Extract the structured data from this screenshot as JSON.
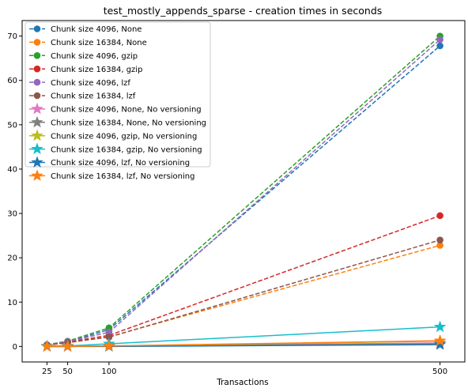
{
  "chart_data": {
    "type": "line",
    "title": "test_mostly_appends_sparse - creation times in seconds",
    "xlabel": "Transactions",
    "ylabel": "",
    "x": [
      25,
      50,
      100,
      500
    ],
    "xticks": [
      25,
      50,
      100,
      500
    ],
    "yticks": [
      0,
      10,
      20,
      30,
      40,
      50,
      60,
      70
    ],
    "xlim": [
      -5,
      530
    ],
    "ylim": [
      -3.5,
      73.5
    ],
    "grid": false,
    "legend_position": "top-left",
    "series": [
      {
        "name": "Chunk size 4096, None",
        "color": "#1f77b4",
        "dash": true,
        "marker": "circle",
        "values": [
          0.3,
          1.0,
          3.8,
          67.8
        ]
      },
      {
        "name": "Chunk size 16384, None",
        "color": "#ff7f0e",
        "dash": true,
        "marker": "circle",
        "values": [
          0.3,
          0.8,
          2.2,
          22.8
        ]
      },
      {
        "name": "Chunk size 4096, gzip",
        "color": "#2ca02c",
        "dash": true,
        "marker": "circle",
        "values": [
          0.4,
          1.2,
          4.2,
          70.0
        ]
      },
      {
        "name": "Chunk size 16384, gzip",
        "color": "#d62728",
        "dash": true,
        "marker": "circle",
        "values": [
          0.3,
          1.0,
          2.5,
          29.5
        ]
      },
      {
        "name": "Chunk size 4096, lzf",
        "color": "#9467bd",
        "dash": true,
        "marker": "circle",
        "values": [
          0.4,
          1.1,
          3.2,
          69.2
        ]
      },
      {
        "name": "Chunk size 16384, lzf",
        "color": "#8c564b",
        "dash": true,
        "marker": "circle",
        "values": [
          0.3,
          0.9,
          2.1,
          24.0
        ]
      },
      {
        "name": "Chunk size 4096, None, No versioning",
        "color": "#e377c2",
        "dash": false,
        "marker": "star",
        "values": [
          0.0,
          0.0,
          0.1,
          0.8
        ]
      },
      {
        "name": "Chunk size 16384, None, No versioning",
        "color": "#7f7f7f",
        "dash": false,
        "marker": "star",
        "values": [
          0.0,
          0.0,
          0.1,
          0.6
        ]
      },
      {
        "name": "Chunk size 4096, gzip, No versioning",
        "color": "#bcbd22",
        "dash": false,
        "marker": "star",
        "values": [
          0.0,
          0.0,
          0.1,
          1.2
        ]
      },
      {
        "name": "Chunk size 16384, gzip, No versioning",
        "color": "#17becf",
        "dash": false,
        "marker": "star",
        "values": [
          0.1,
          0.1,
          0.6,
          4.4
        ]
      },
      {
        "name": "Chunk size 4096, lzf, No versioning",
        "color": "#1f77b4",
        "dash": false,
        "marker": "star",
        "values": [
          0.0,
          0.0,
          0.0,
          0.4
        ]
      },
      {
        "name": "Chunk size 16384, lzf, No versioning",
        "color": "#ff7f0e",
        "dash": false,
        "marker": "star",
        "values": [
          0.0,
          0.0,
          0.1,
          1.3
        ]
      }
    ]
  }
}
